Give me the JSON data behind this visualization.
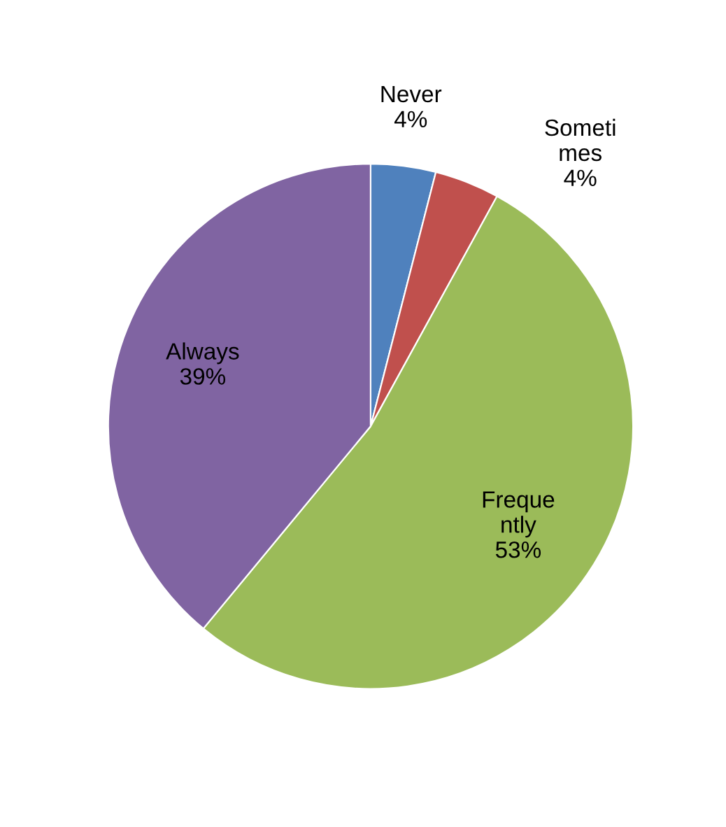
{
  "chart_data": {
    "type": "pie",
    "categories": [
      "Never",
      "Sometimes",
      "Frequently",
      "Always"
    ],
    "values": [
      4,
      4,
      53,
      39
    ],
    "value_labels": [
      "4%",
      "4%",
      "53%",
      "39%"
    ],
    "colors": [
      "#4f81bd",
      "#c0504d",
      "#9bbb59",
      "#8064a2"
    ],
    "legend": false
  }
}
